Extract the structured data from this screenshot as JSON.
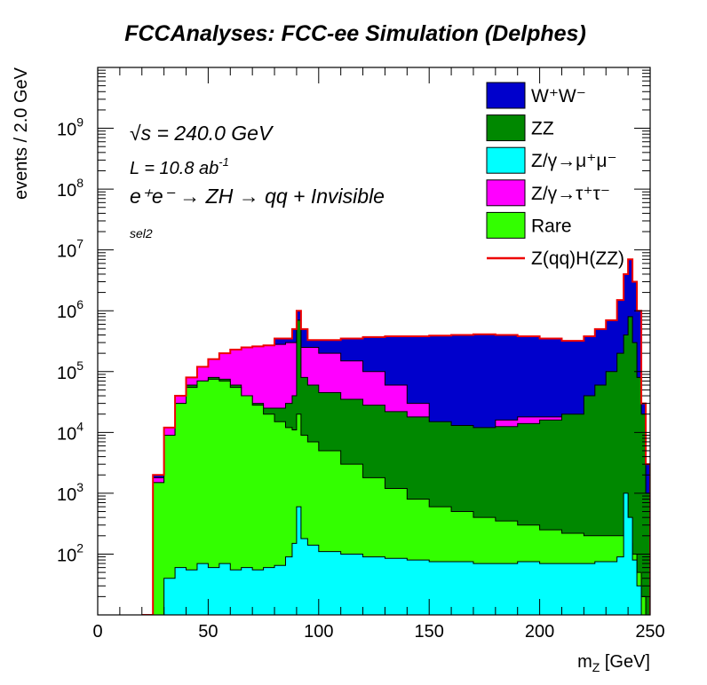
{
  "chart_data": {
    "type": "area",
    "title": "FCCAnalyses: FCC-ee Simulation (Delphes)",
    "xlabel_main": "m",
    "xlabel_sub": "Z",
    "xlabel_unit": " [GeV]",
    "ylabel": "events / 2.0 GeV",
    "xlim": [
      0,
      250
    ],
    "ylim": [
      10,
      10000000000.0
    ],
    "log_y": true,
    "grid": false,
    "legend_position": "top-right",
    "x_ticks": [
      "0",
      "50",
      "100",
      "150",
      "200",
      "250"
    ],
    "y_ticks": [
      {
        "base": "10",
        "exp": "2"
      },
      {
        "base": "10",
        "exp": "3"
      },
      {
        "base": "10",
        "exp": "4"
      },
      {
        "base": "10",
        "exp": "5"
      },
      {
        "base": "10",
        "exp": "6"
      },
      {
        "base": "10",
        "exp": "7"
      },
      {
        "base": "10",
        "exp": "8"
      },
      {
        "base": "10",
        "exp": "9"
      }
    ],
    "annotations": {
      "sqrts_symbol": "√s",
      "sqrts_value": " = 240.0 GeV",
      "lumi_main": "L = 10.8 ab",
      "lumi_sup": "-1",
      "process": "e⁺e⁻ → ZH → qq + Invisible",
      "selection": "sel2"
    },
    "x": [
      20,
      25,
      30,
      35,
      40,
      45,
      50,
      55,
      60,
      65,
      70,
      75,
      80,
      85,
      88,
      90,
      92,
      95,
      100,
      110,
      120,
      130,
      140,
      150,
      160,
      170,
      180,
      190,
      200,
      210,
      220,
      225,
      230,
      235,
      238,
      240,
      242,
      244,
      246,
      248,
      250
    ],
    "series": [
      {
        "name": "W⁺W⁻",
        "color": "#0000cc",
        "values": [
          10,
          2000,
          12000,
          40000,
          80000,
          120000,
          160000,
          200000,
          230000,
          250000,
          260000,
          270000,
          350000,
          350000,
          500000,
          1000000,
          500000,
          330000,
          330000,
          350000,
          370000,
          380000,
          380000,
          390000,
          400000,
          410000,
          400000,
          380000,
          350000,
          320000,
          380000,
          500000,
          700000,
          1500000,
          4000000,
          7000000,
          3000000,
          1000000,
          30000,
          3000,
          10
        ]
      },
      {
        "name": "ZZ",
        "color": "#008800",
        "values": [
          10,
          1500,
          9000,
          30000,
          60000,
          70000,
          80000,
          75000,
          60000,
          40000,
          30000,
          25000,
          25000,
          30000,
          40000,
          700000,
          80000,
          60000,
          45000,
          35000,
          28000,
          22000,
          18000,
          15000,
          13000,
          12000,
          12500,
          14000,
          16000,
          20000,
          40000,
          60000,
          100000,
          200000,
          400000,
          800000,
          300000,
          80000,
          20000,
          1000,
          10
        ]
      },
      {
        "name": "Z/γ→μ⁺μ⁻",
        "color": "#00ffff",
        "values": [
          10,
          10,
          40,
          60,
          55,
          70,
          60,
          70,
          55,
          60,
          55,
          60,
          65,
          90,
          150,
          600,
          180,
          140,
          110,
          100,
          90,
          85,
          80,
          75,
          75,
          70,
          70,
          75,
          70,
          70,
          70,
          75,
          75,
          90,
          1000,
          400,
          80,
          30,
          10,
          10,
          10
        ]
      },
      {
        "name": "Z/γ→τ⁺τ⁻",
        "color": "#ff00ff",
        "values": [
          10,
          1800,
          12000,
          40000,
          80000,
          120000,
          160000,
          200000,
          230000,
          250000,
          260000,
          270000,
          280000,
          300000,
          300000,
          700000,
          250000,
          250000,
          200000,
          150000,
          100000,
          60000,
          30000,
          5000,
          6000,
          10000,
          16000,
          18000,
          18000,
          18000,
          20000,
          25000,
          35000,
          60000,
          100000,
          200000,
          50000,
          10000,
          2000,
          100,
          10
        ]
      },
      {
        "name": "Rare",
        "color": "#33ff00",
        "values": [
          10,
          1500,
          9000,
          30000,
          55000,
          70000,
          75000,
          70000,
          55000,
          40000,
          28000,
          20000,
          15000,
          12000,
          11000,
          20000,
          9000,
          7000,
          5000,
          3000,
          1800,
          1200,
          800,
          600,
          500,
          400,
          350,
          300,
          250,
          220,
          200,
          200,
          200,
          200,
          200,
          150,
          100,
          50,
          20,
          10,
          10
        ]
      },
      {
        "name": "Z(qq)H(ZZ)",
        "color": "#ee0000",
        "style": "line",
        "values": [
          10,
          2000,
          12000,
          40000,
          80000,
          120000,
          160000,
          200000,
          230000,
          250000,
          260000,
          270000,
          350000,
          350000,
          500000,
          1000000,
          500000,
          330000,
          330000,
          350000,
          370000,
          380000,
          380000,
          390000,
          400000,
          410000,
          400000,
          380000,
          350000,
          320000,
          380000,
          500000,
          700000,
          1500000,
          4000000,
          7000000,
          3000000,
          1000000,
          30000,
          3000,
          10
        ]
      }
    ]
  }
}
